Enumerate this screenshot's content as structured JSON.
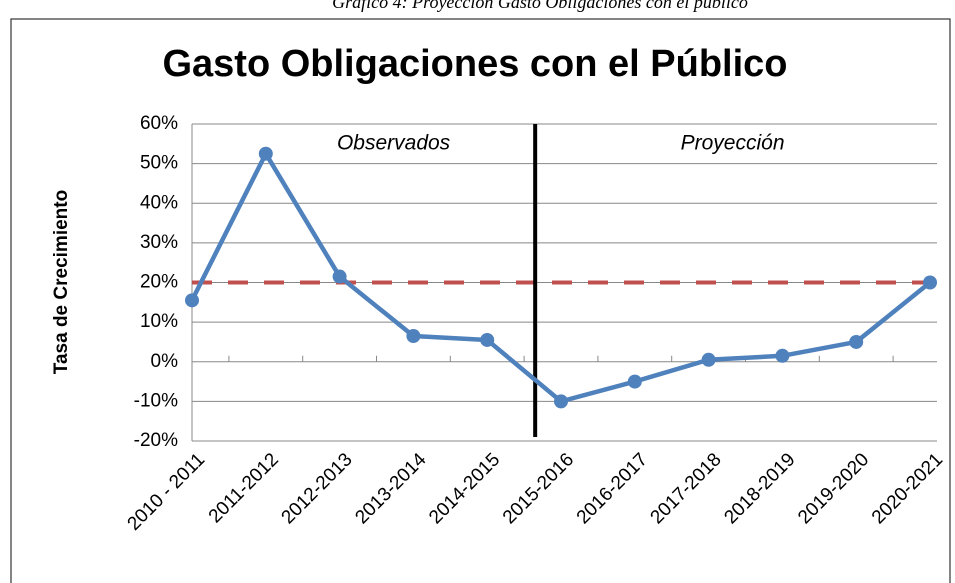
{
  "caption": "Gráfico 4: Proyección Gasto Obligaciones con el público",
  "chart_data": {
    "type": "line",
    "title": "Gasto Obligaciones con el Público",
    "ylabel": "Tasa de Crecimiento",
    "categories": [
      "2010 - 2011",
      "2011-2012",
      "2012-2013",
      "2013-2014",
      "2014-2015",
      "2015-2016",
      "2016-2017",
      "2017-2018",
      "2018-2019",
      "2019-2020",
      "2020-2021"
    ],
    "values": [
      15.5,
      52.5,
      21.5,
      6.5,
      5.5,
      -10,
      -5,
      0.5,
      1.5,
      5,
      20
    ],
    "color": "#4f81bd",
    "reference_line": {
      "value": 20,
      "color": "#c0504d"
    },
    "annotations": [
      "Observados",
      "Proyección"
    ],
    "ylim": [
      -20,
      60
    ],
    "yticks": [
      {
        "value": -20,
        "label": "-20%"
      },
      {
        "value": -10,
        "label": "-10%"
      },
      {
        "value": 0,
        "label": "0%"
      },
      {
        "value": 10,
        "label": "10%"
      },
      {
        "value": 20,
        "label": "20%"
      },
      {
        "value": 30,
        "label": "30%"
      },
      {
        "value": 40,
        "label": "40%"
      },
      {
        "value": 50,
        "label": "50%"
      },
      {
        "value": 60,
        "label": "60%"
      }
    ],
    "grid": true
  }
}
